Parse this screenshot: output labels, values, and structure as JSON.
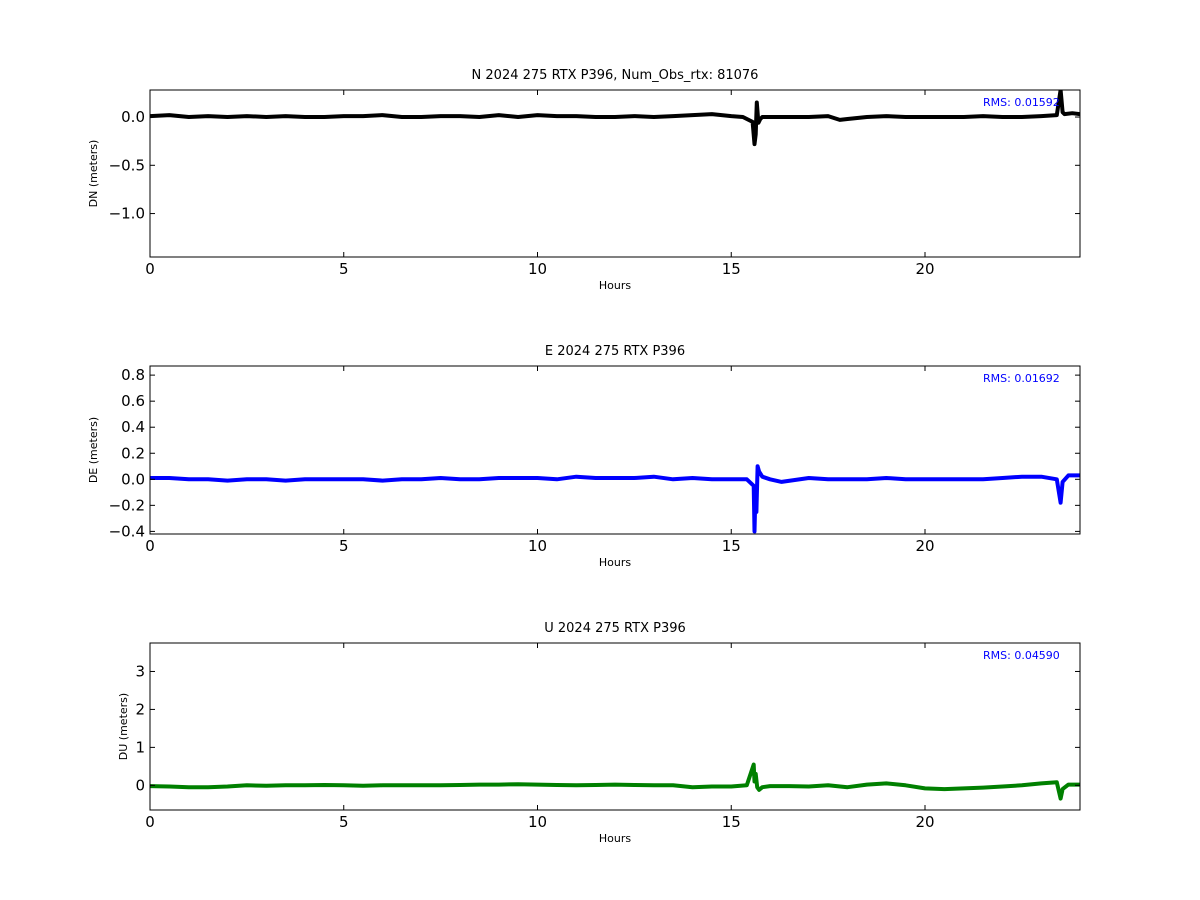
{
  "chart_data": [
    {
      "type": "line",
      "title": "N 2024 275 RTX  P396, Num_Obs_rtx: 81076",
      "xlabel": "Hours",
      "ylabel": "DN (meters)",
      "xlim": [
        0,
        24
      ],
      "ylim": [
        -1.45,
        0.28
      ],
      "xticks": [
        0,
        5,
        10,
        15,
        20
      ],
      "xtick_labels": [
        "0",
        "5",
        "10",
        "15",
        "20"
      ],
      "yticks": [
        0.0,
        -0.5,
        -1.0
      ],
      "ytick_labels": [
        "0.0",
        "−0.5",
        "−1.0"
      ],
      "grid": false,
      "annotation": "RMS:  0.01592",
      "annotation_color": "#0000ff",
      "series": [
        {
          "color": "#000000",
          "x": [
            0,
            0.5,
            1,
            1.5,
            2,
            2.5,
            3,
            3.5,
            4,
            4.5,
            5,
            5.5,
            6,
            6.5,
            7,
            7.5,
            8,
            8.5,
            9,
            9.5,
            10,
            10.5,
            11,
            11.5,
            12,
            12.5,
            13,
            13.5,
            14,
            14.5,
            15,
            15.3,
            15.55,
            15.6,
            15.63,
            15.66,
            15.7,
            15.75,
            15.8,
            16,
            16.5,
            17,
            17.5,
            17.8,
            18,
            18.5,
            19,
            19.5,
            20,
            20.5,
            21,
            21.5,
            22,
            22.5,
            23,
            23.4,
            23.5,
            23.55,
            23.6,
            23.8,
            24
          ],
          "y": [
            0.01,
            0.02,
            0.0,
            0.01,
            0.0,
            0.01,
            0.0,
            0.01,
            0.0,
            0.0,
            0.01,
            0.01,
            0.02,
            0.0,
            0.0,
            0.01,
            0.01,
            0.0,
            0.02,
            0.0,
            0.02,
            0.01,
            0.01,
            0.0,
            0.0,
            0.01,
            0.0,
            0.01,
            0.02,
            0.03,
            0.01,
            0.0,
            -0.05,
            -0.28,
            -0.18,
            0.15,
            -0.06,
            -0.02,
            0.0,
            0.0,
            0.0,
            0.0,
            0.01,
            -0.03,
            -0.02,
            0.0,
            0.01,
            0.0,
            0.0,
            0.0,
            0.0,
            0.01,
            0.0,
            0.0,
            0.01,
            0.02,
            0.28,
            0.05,
            0.03,
            0.04,
            0.03
          ]
        }
      ]
    },
    {
      "type": "line",
      "title": "E 2024 275 RTX  P396",
      "xlabel": "Hours",
      "ylabel": "DE (meters)",
      "xlim": [
        0,
        24
      ],
      "ylim": [
        -0.42,
        0.87
      ],
      "xticks": [
        0,
        5,
        10,
        15,
        20
      ],
      "xtick_labels": [
        "0",
        "5",
        "10",
        "15",
        "20"
      ],
      "yticks": [
        0.8,
        0.6,
        0.4,
        0.2,
        0.0,
        -0.2,
        -0.4
      ],
      "ytick_labels": [
        "0.8",
        "0.6",
        "0.4",
        "0.2",
        "0.0",
        "−0.2",
        "−0.4"
      ],
      "grid": false,
      "annotation": "RMS:  0.01692",
      "annotation_color": "#0000ff",
      "series": [
        {
          "color": "#0000ff",
          "x": [
            0,
            0.5,
            1,
            1.5,
            2,
            2.5,
            3,
            3.5,
            4,
            4.5,
            5,
            5.5,
            6,
            6.5,
            7,
            7.5,
            8,
            8.5,
            9,
            9.5,
            10,
            10.5,
            11,
            11.5,
            12,
            12.5,
            13,
            13.5,
            14,
            14.5,
            15,
            15.4,
            15.58,
            15.6,
            15.62,
            15.65,
            15.68,
            15.72,
            15.8,
            16,
            16.3,
            17,
            17.5,
            18,
            18.5,
            19,
            19.5,
            20,
            20.5,
            21,
            21.5,
            22,
            22.5,
            23,
            23.4,
            23.5,
            23.55,
            23.7,
            24
          ],
          "y": [
            0.01,
            0.01,
            0.0,
            0.0,
            -0.01,
            0.0,
            0.0,
            -0.01,
            0.0,
            0.0,
            0.0,
            0.0,
            -0.01,
            0.0,
            0.0,
            0.01,
            0.0,
            0.0,
            0.01,
            0.01,
            0.01,
            0.0,
            0.02,
            0.01,
            0.01,
            0.01,
            0.02,
            0.0,
            0.01,
            0.0,
            0.0,
            0.0,
            -0.05,
            -0.4,
            -0.15,
            -0.25,
            0.1,
            0.06,
            0.02,
            0.0,
            -0.02,
            0.01,
            0.0,
            0.0,
            0.0,
            0.01,
            0.0,
            0.0,
            0.0,
            0.0,
            0.0,
            0.01,
            0.02,
            0.02,
            0.0,
            -0.18,
            -0.02,
            0.03,
            0.03
          ]
        }
      ]
    },
    {
      "type": "line",
      "title": "U 2024 275 RTX  P396",
      "xlabel": "Hours",
      "ylabel": "DU (meters)",
      "xlim": [
        0,
        24
      ],
      "ylim": [
        -0.65,
        3.75
      ],
      "xticks": [
        0,
        5,
        10,
        15,
        20
      ],
      "xtick_labels": [
        "0",
        "5",
        "10",
        "15",
        "20"
      ],
      "yticks": [
        3,
        2,
        1,
        0
      ],
      "ytick_labels": [
        "3",
        "2",
        "1",
        "0"
      ],
      "grid": false,
      "annotation": "RMS:  0.04590",
      "annotation_color": "#0000ff",
      "series": [
        {
          "color": "#008000",
          "x": [
            0,
            0.5,
            1,
            1.5,
            2,
            2.5,
            3,
            3.5,
            4,
            4.5,
            5,
            5.5,
            6,
            6.5,
            7,
            7.5,
            8,
            8.5,
            9,
            9.5,
            10,
            10.5,
            11,
            11.5,
            12,
            12.5,
            13,
            13.5,
            14,
            14.5,
            15,
            15.4,
            15.58,
            15.6,
            15.63,
            15.67,
            15.72,
            15.8,
            16,
            16.5,
            17,
            17.5,
            18,
            18.5,
            19,
            19.5,
            20,
            20.5,
            21,
            21.5,
            22,
            22.5,
            23,
            23.4,
            23.5,
            23.55,
            23.7,
            24
          ],
          "y": [
            -0.02,
            -0.03,
            -0.05,
            -0.05,
            -0.03,
            0.0,
            -0.01,
            0.0,
            0.0,
            0.01,
            0.0,
            -0.01,
            0.0,
            0.0,
            0.0,
            0.0,
            0.01,
            0.02,
            0.02,
            0.03,
            0.02,
            0.01,
            0.0,
            0.01,
            0.02,
            0.01,
            0.0,
            0.0,
            -0.05,
            -0.03,
            -0.03,
            0.0,
            0.55,
            0.1,
            0.3,
            -0.05,
            -0.12,
            -0.05,
            -0.02,
            -0.02,
            -0.03,
            0.0,
            -0.05,
            0.02,
            0.05,
            0.0,
            -0.08,
            -0.1,
            -0.08,
            -0.06,
            -0.03,
            0.0,
            0.05,
            0.08,
            -0.35,
            -0.1,
            0.02,
            0.02
          ]
        }
      ]
    }
  ]
}
